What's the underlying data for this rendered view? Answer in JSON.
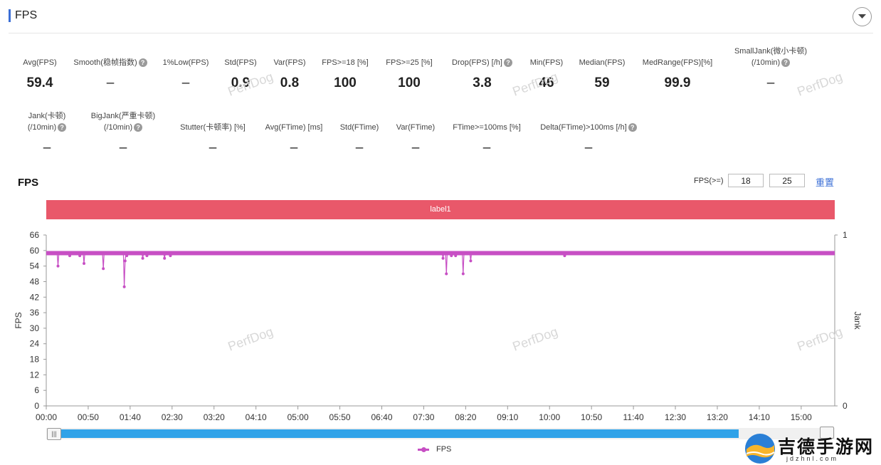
{
  "panel": {
    "title": "FPS"
  },
  "metrics": [
    {
      "label": "Avg(FPS)",
      "value": "59.4"
    },
    {
      "label": "Smooth(稳帧指数)",
      "value": "–"
    },
    {
      "label": "1%Low(FPS)",
      "value": "–"
    },
    {
      "label": "Std(FPS)",
      "value": "0.9"
    },
    {
      "label": "Var(FPS)",
      "value": "0.8"
    },
    {
      "label": "FPS>=18 [%]",
      "value": "100"
    },
    {
      "label": "FPS>=25 [%]",
      "value": "100"
    },
    {
      "label": "Drop(FPS) [/h]",
      "value": "3.8"
    },
    {
      "label": "Min(FPS)",
      "value": "46"
    },
    {
      "label": "Median(FPS)",
      "value": "59"
    },
    {
      "label": "MedRange(FPS)[%]",
      "value": "99.9"
    },
    {
      "label": "SmallJank(微小卡顿)",
      "label2": "(/10min)",
      "value": "–"
    },
    {
      "label": "Jank(卡顿)",
      "label2": "(/10min)",
      "value": "–"
    },
    {
      "label": "BigJank(严重卡顿)",
      "label2": "(/10min)",
      "value": "–"
    },
    {
      "label": "Stutter(卡顿率) [%]",
      "value": "–"
    },
    {
      "label": "Avg(FTime) [ms]",
      "value": "–"
    },
    {
      "label": "Std(FTime)",
      "value": "–"
    },
    {
      "label": "Var(FTime)",
      "value": "–"
    },
    {
      "label": "FTime>=100ms [%]",
      "value": "–"
    },
    {
      "label": "Delta(FTime)>100ms [/h]",
      "value": "–"
    }
  ],
  "chart_section": {
    "title": "FPS",
    "fps_threshold_label": "FPS(>=)",
    "threshold_low": "18",
    "threshold_high": "25",
    "reset_label": "重置",
    "band_label": "label1",
    "watermark": "PerfDog",
    "legend_label": "FPS"
  },
  "chart_data": {
    "type": "line",
    "ylabel": "FPS",
    "y2label": "Jank",
    "ylim": [
      0,
      66
    ],
    "yticks": [
      0,
      6,
      12,
      18,
      24,
      30,
      36,
      42,
      48,
      54,
      60,
      66
    ],
    "y2ticks": [
      0,
      1
    ],
    "xlim_seconds": [
      0,
      940
    ],
    "xticks": [
      "00:00",
      "00:50",
      "01:40",
      "02:30",
      "03:20",
      "04:10",
      "05:00",
      "05:50",
      "06:40",
      "07:30",
      "08:20",
      "09:10",
      "10:00",
      "10:50",
      "11:40",
      "12:30",
      "13:20",
      "14:10",
      "15:00"
    ],
    "series": [
      {
        "name": "FPS",
        "color": "#c74fc4",
        "baseline": 59,
        "dips": [
          {
            "t": 14,
            "v": 54
          },
          {
            "t": 28,
            "v": 58
          },
          {
            "t": 40,
            "v": 58
          },
          {
            "t": 45,
            "v": 55
          },
          {
            "t": 68,
            "v": 53
          },
          {
            "t": 93,
            "v": 46
          },
          {
            "t": 94,
            "v": 56
          },
          {
            "t": 96,
            "v": 58
          },
          {
            "t": 115,
            "v": 57
          },
          {
            "t": 120,
            "v": 58
          },
          {
            "t": 141,
            "v": 57
          },
          {
            "t": 148,
            "v": 58
          },
          {
            "t": 473,
            "v": 57
          },
          {
            "t": 477,
            "v": 51
          },
          {
            "t": 483,
            "v": 58
          },
          {
            "t": 488,
            "v": 58
          },
          {
            "t": 497,
            "v": 51
          },
          {
            "t": 506,
            "v": 56
          },
          {
            "t": 618,
            "v": 58
          }
        ]
      }
    ]
  },
  "brand": {
    "name": "吉德手游网",
    "url": "jdzhnl.com"
  }
}
